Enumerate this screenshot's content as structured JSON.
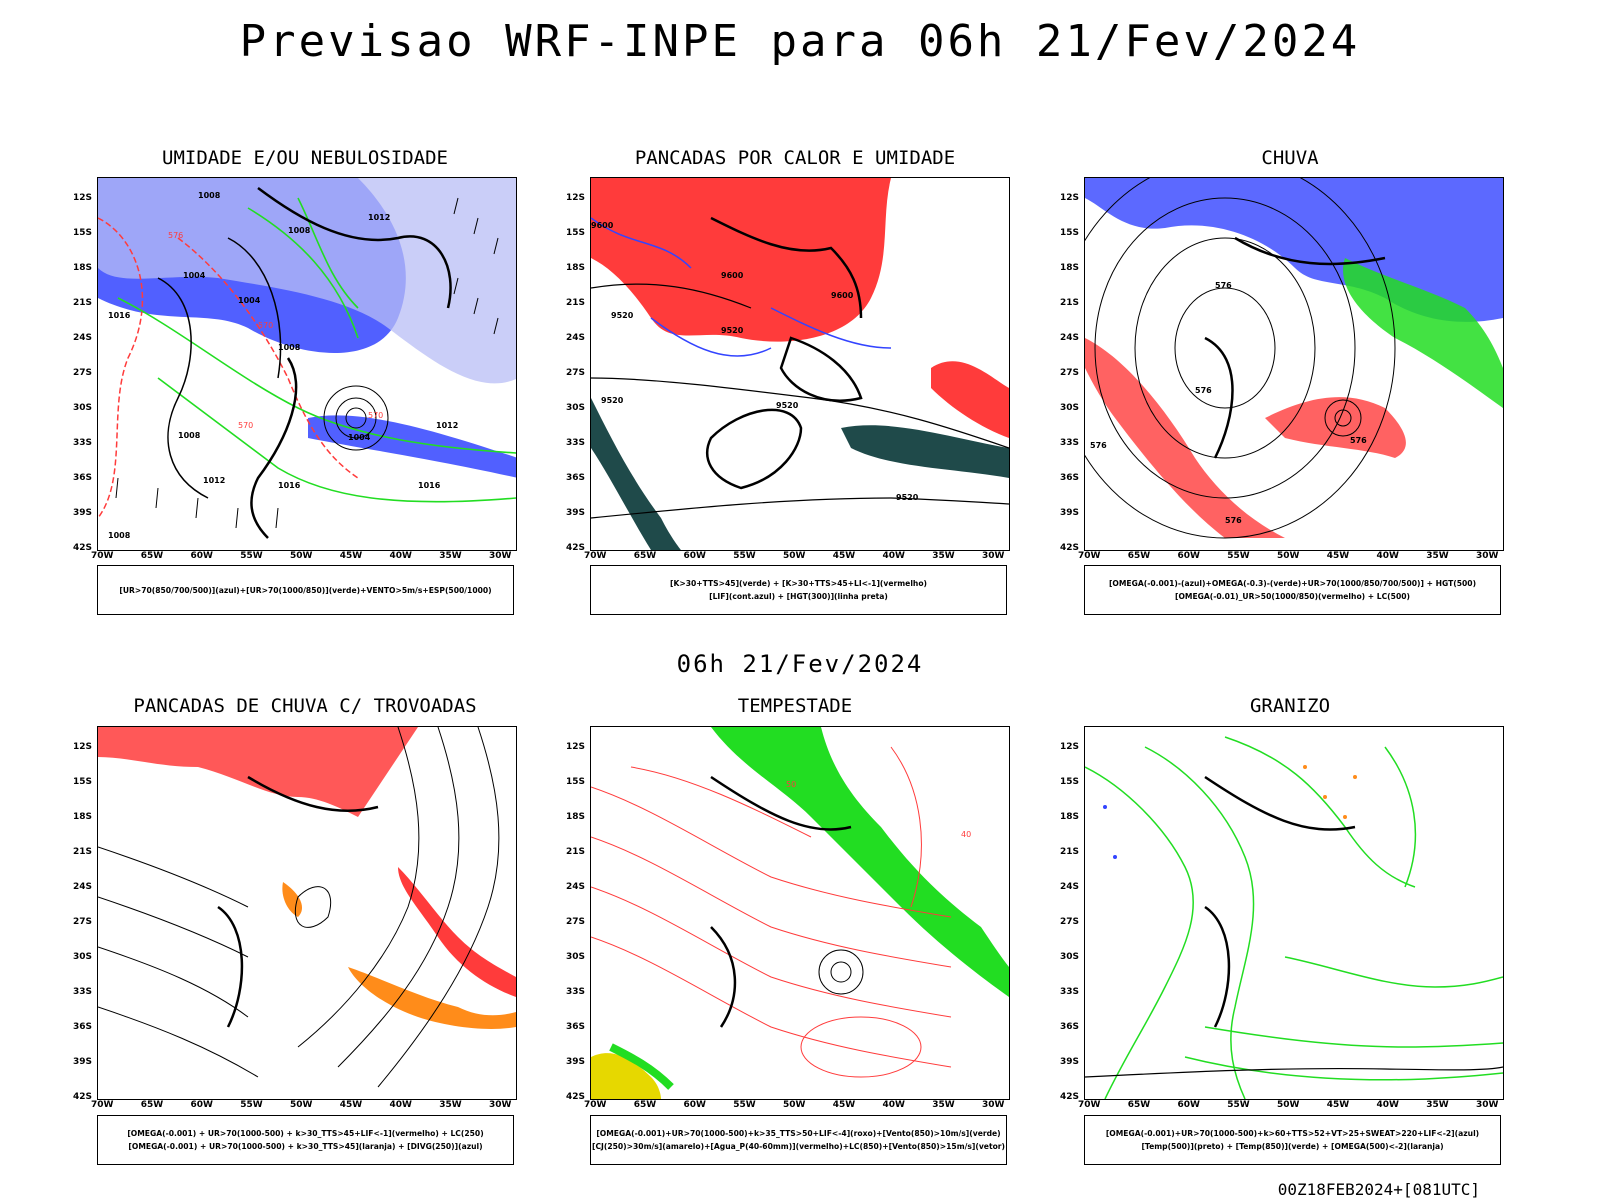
{
  "title": "Previsao WRF-INPE  para 06h 21/Fev/2024",
  "mid_title": "06h 21/Fev/2024",
  "footer": "00Z18FEB2024+[081UTC]",
  "lat_labels": [
    "12S",
    "15S",
    "18S",
    "21S",
    "24S",
    "27S",
    "30S",
    "33S",
    "36S",
    "39S",
    "42S"
  ],
  "lon_labels": [
    "70W",
    "65W",
    "60W",
    "55W",
    "50W",
    "45W",
    "40W",
    "35W",
    "30W"
  ],
  "panels": [
    {
      "title": "UMIDADE E/OU NEBULOSIDADE",
      "legend1": "[UR>70(850/700/500)](azul)+[UR>70(1000/850)](verde)+VENTO>5m/s+ESP(500/1000)",
      "legend2": "",
      "labels": [
        "1008",
        "1012",
        "1008",
        "1004",
        "1004",
        "1008",
        "1016",
        "1008",
        "1012",
        "1004",
        "1012",
        "1016",
        "1016",
        "1008",
        "576",
        "570",
        "570",
        "570"
      ]
    },
    {
      "title": "PANCADAS POR CALOR E UMIDADE",
      "legend1": "[K>30+TTS>45](verde) + [K>30+TTS>45+LI<-1](vermelho)",
      "legend2": "[LIF](cont.azul) + [HGT(300)](linha preta)",
      "labels": [
        "9600",
        "9600",
        "9520",
        "9520",
        "9600",
        "9520",
        "9520",
        "9520"
      ]
    },
    {
      "title": "CHUVA",
      "legend1": "[OMEGA(-0.001)-(azul)+OMEGA(-0.3)-(verde)+UR>70(1000/850/700/500)] + HGT(500)",
      "legend2": "[OMEGA(-0.01)_UR>50(1000/850)(vermelho) + LC(500)",
      "labels": [
        "576",
        "576",
        "576",
        "576",
        "576"
      ]
    },
    {
      "title": "PANCADAS DE CHUVA C/ TROVOADAS",
      "legend1": "[OMEGA(-0.001) + UR>70(1000-500) + k>30_TTS>45+LIF<-1](vermelho) + LC(250)",
      "legend2": "[OMEGA(-0.001) + UR>70(1000-500) + k>30_TTS>45](laranja) + [DIVG(250)](azul)",
      "labels": []
    },
    {
      "title": "TEMPESTADE",
      "legend1": "[OMEGA(-0.001)+UR>70(1000-500)+k>35_TTS>50+LIF<-4](roxo)+[Vento(850)>10m/s](verde)",
      "legend2": "[CJ(250)>30m/s](amarelo)+[Agua_P(40-60mm)](vermelho)+LC(850)+[Vento(850)>15m/s](vetor)",
      "labels": [
        "40",
        "50"
      ]
    },
    {
      "title": "GRANIZO",
      "legend1": "[OMEGA(-0.001)+UR>70(1000-500)+k>60+TTS>52+VT>25+SWEAT>220+LIF<-2](azul)",
      "legend2": "[Temp(500)](preto) + [Temp(850)](verde) + [OMEGA(500)<-2](laranja)",
      "labels": []
    }
  ],
  "colors": {
    "red": "#ff3b3b",
    "green": "#22dd22",
    "blue": "#3344ff",
    "lightblue": "#b8bef5",
    "darkteal": "#1f4a4a",
    "orange": "#ff8c1a",
    "yellow": "#e6d800",
    "purple": "#8a2be2"
  }
}
